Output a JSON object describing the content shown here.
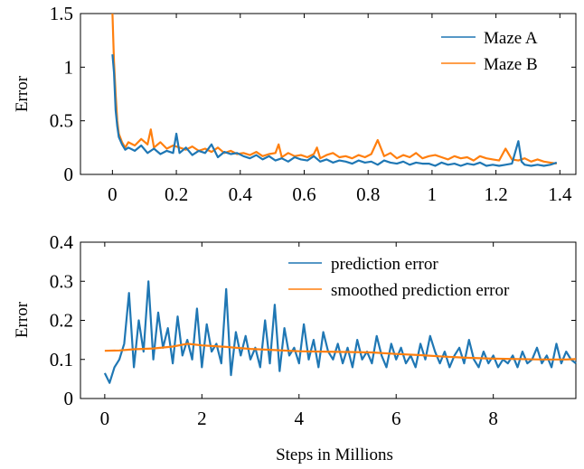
{
  "chart_data": [
    {
      "type": "line",
      "title": "",
      "xlabel": "",
      "ylabel": "Error",
      "xlim": [
        -0.1,
        1.45
      ],
      "ylim": [
        0,
        1.5
      ],
      "xticks": [
        0,
        0.2,
        0.4,
        0.6,
        0.8,
        1,
        1.2,
        1.4
      ],
      "xtick_labels": [
        "0",
        "0.2",
        "0.4",
        "0.6",
        "0.8",
        "1",
        "1.2",
        "1.4"
      ],
      "yticks": [
        0,
        0.5,
        1,
        1.5
      ],
      "ytick_labels": [
        "0",
        "0.5",
        "1",
        "1.5"
      ],
      "grid": false,
      "legend": "top-right",
      "series": [
        {
          "name": "Maze A",
          "color": "#1f77b4",
          "x": [
            0,
            0.005,
            0.01,
            0.015,
            0.02,
            0.03,
            0.04,
            0.05,
            0.07,
            0.09,
            0.11,
            0.13,
            0.15,
            0.17,
            0.19,
            0.2,
            0.21,
            0.23,
            0.25,
            0.27,
            0.29,
            0.31,
            0.33,
            0.35,
            0.37,
            0.39,
            0.41,
            0.43,
            0.45,
            0.47,
            0.49,
            0.51,
            0.53,
            0.55,
            0.57,
            0.59,
            0.61,
            0.63,
            0.65,
            0.67,
            0.69,
            0.71,
            0.73,
            0.75,
            0.77,
            0.79,
            0.81,
            0.83,
            0.85,
            0.87,
            0.89,
            0.91,
            0.93,
            0.95,
            0.97,
            0.99,
            1.01,
            1.03,
            1.05,
            1.07,
            1.09,
            1.11,
            1.13,
            1.15,
            1.17,
            1.19,
            1.21,
            1.23,
            1.25,
            1.27,
            1.28,
            1.29,
            1.31,
            1.33,
            1.35,
            1.37,
            1.39
          ],
          "y": [
            1.12,
            0.95,
            0.6,
            0.45,
            0.35,
            0.28,
            0.23,
            0.25,
            0.22,
            0.27,
            0.2,
            0.24,
            0.19,
            0.22,
            0.2,
            0.38,
            0.2,
            0.25,
            0.18,
            0.22,
            0.2,
            0.28,
            0.16,
            0.21,
            0.19,
            0.2,
            0.17,
            0.15,
            0.18,
            0.14,
            0.17,
            0.13,
            0.15,
            0.12,
            0.16,
            0.14,
            0.13,
            0.17,
            0.12,
            0.14,
            0.11,
            0.13,
            0.12,
            0.1,
            0.13,
            0.11,
            0.12,
            0.09,
            0.13,
            0.11,
            0.1,
            0.12,
            0.09,
            0.11,
            0.1,
            0.1,
            0.08,
            0.11,
            0.09,
            0.1,
            0.08,
            0.1,
            0.09,
            0.11,
            0.08,
            0.09,
            0.08,
            0.09,
            0.1,
            0.31,
            0.12,
            0.09,
            0.08,
            0.09,
            0.08,
            0.09,
            0.11
          ]
        },
        {
          "name": "Maze B",
          "color": "#ff7f0e",
          "x": [
            0,
            0.005,
            0.01,
            0.015,
            0.02,
            0.03,
            0.04,
            0.05,
            0.07,
            0.09,
            0.11,
            0.12,
            0.13,
            0.15,
            0.17,
            0.19,
            0.21,
            0.23,
            0.25,
            0.27,
            0.29,
            0.31,
            0.33,
            0.35,
            0.37,
            0.39,
            0.41,
            0.43,
            0.45,
            0.47,
            0.49,
            0.51,
            0.52,
            0.53,
            0.55,
            0.57,
            0.59,
            0.61,
            0.63,
            0.64,
            0.65,
            0.67,
            0.69,
            0.71,
            0.73,
            0.75,
            0.77,
            0.79,
            0.81,
            0.83,
            0.85,
            0.87,
            0.89,
            0.91,
            0.93,
            0.95,
            0.97,
            0.99,
            1.01,
            1.03,
            1.05,
            1.07,
            1.09,
            1.11,
            1.13,
            1.15,
            1.17,
            1.19,
            1.21,
            1.23,
            1.25,
            1.27,
            1.29,
            1.31,
            1.33,
            1.35,
            1.37,
            1.39
          ],
          "y": [
            1.5,
            1.05,
            0.75,
            0.5,
            0.38,
            0.3,
            0.25,
            0.3,
            0.27,
            0.33,
            0.28,
            0.42,
            0.25,
            0.3,
            0.24,
            0.27,
            0.25,
            0.23,
            0.26,
            0.22,
            0.24,
            0.21,
            0.25,
            0.2,
            0.22,
            0.19,
            0.2,
            0.18,
            0.21,
            0.17,
            0.19,
            0.2,
            0.28,
            0.16,
            0.2,
            0.17,
            0.18,
            0.16,
            0.19,
            0.25,
            0.15,
            0.18,
            0.2,
            0.16,
            0.17,
            0.15,
            0.18,
            0.16,
            0.19,
            0.32,
            0.17,
            0.2,
            0.15,
            0.18,
            0.16,
            0.2,
            0.15,
            0.17,
            0.18,
            0.16,
            0.14,
            0.17,
            0.15,
            0.16,
            0.13,
            0.17,
            0.15,
            0.14,
            0.13,
            0.24,
            0.14,
            0.13,
            0.15,
            0.12,
            0.14,
            0.12,
            0.11,
            0.1
          ]
        }
      ]
    },
    {
      "type": "line",
      "title": "",
      "xlabel": "Steps in Millions",
      "ylabel": "Error",
      "xlim": [
        -0.5,
        9.7
      ],
      "ylim": [
        0,
        0.4
      ],
      "xticks": [
        0,
        2,
        4,
        6,
        8
      ],
      "xtick_labels": [
        "0",
        "2",
        "4",
        "6",
        "8"
      ],
      "yticks": [
        0,
        0.1,
        0.2,
        0.3,
        0.4
      ],
      "ytick_labels": [
        "0",
        "0.1",
        "0.2",
        "0.3",
        "0.4"
      ],
      "grid": false,
      "legend": "top-right",
      "series": [
        {
          "name": "prediction error",
          "color": "#1f77b4",
          "x": [
            0,
            0.1,
            0.2,
            0.3,
            0.4,
            0.5,
            0.6,
            0.7,
            0.8,
            0.9,
            1.0,
            1.1,
            1.2,
            1.3,
            1.4,
            1.5,
            1.6,
            1.7,
            1.8,
            1.9,
            2.0,
            2.1,
            2.2,
            2.3,
            2.4,
            2.5,
            2.6,
            2.7,
            2.8,
            2.9,
            3.0,
            3.1,
            3.2,
            3.3,
            3.4,
            3.5,
            3.6,
            3.7,
            3.8,
            3.9,
            4.0,
            4.1,
            4.2,
            4.3,
            4.4,
            4.5,
            4.6,
            4.7,
            4.8,
            4.9,
            5.0,
            5.1,
            5.2,
            5.3,
            5.4,
            5.5,
            5.6,
            5.7,
            5.8,
            5.9,
            6.0,
            6.1,
            6.2,
            6.3,
            6.4,
            6.5,
            6.6,
            6.7,
            6.8,
            6.9,
            7.0,
            7.1,
            7.2,
            7.3,
            7.4,
            7.5,
            7.6,
            7.7,
            7.8,
            7.9,
            8.0,
            8.1,
            8.2,
            8.3,
            8.4,
            8.5,
            8.6,
            8.7,
            8.8,
            8.9,
            9.0,
            9.1,
            9.2,
            9.3,
            9.4,
            9.5,
            9.6,
            9.7
          ],
          "y": [
            0.065,
            0.04,
            0.08,
            0.1,
            0.14,
            0.27,
            0.08,
            0.2,
            0.12,
            0.3,
            0.1,
            0.22,
            0.13,
            0.18,
            0.09,
            0.21,
            0.11,
            0.15,
            0.1,
            0.23,
            0.08,
            0.19,
            0.12,
            0.14,
            0.09,
            0.28,
            0.06,
            0.17,
            0.11,
            0.16,
            0.1,
            0.13,
            0.08,
            0.2,
            0.09,
            0.24,
            0.07,
            0.18,
            0.11,
            0.13,
            0.09,
            0.19,
            0.1,
            0.15,
            0.08,
            0.17,
            0.12,
            0.1,
            0.14,
            0.09,
            0.13,
            0.08,
            0.15,
            0.1,
            0.12,
            0.09,
            0.16,
            0.11,
            0.08,
            0.14,
            0.1,
            0.13,
            0.09,
            0.11,
            0.08,
            0.14,
            0.1,
            0.16,
            0.12,
            0.09,
            0.12,
            0.08,
            0.11,
            0.13,
            0.09,
            0.15,
            0.1,
            0.08,
            0.12,
            0.09,
            0.11,
            0.08,
            0.1,
            0.09,
            0.11,
            0.08,
            0.12,
            0.09,
            0.1,
            0.13,
            0.09,
            0.11,
            0.08,
            0.14,
            0.09,
            0.12,
            0.1,
            0.09
          ]
        },
        {
          "name": "smoothed prediction error",
          "color": "#ff7f0e",
          "x": [
            0,
            0.3,
            0.6,
            1.0,
            1.4,
            1.7,
            2.0,
            2.5,
            3.0,
            3.5,
            4.0,
            4.5,
            5.0,
            5.5,
            6.0,
            6.5,
            7.0,
            7.5,
            8.0,
            8.5,
            9.0,
            9.5,
            9.7
          ],
          "y": [
            0.122,
            0.123,
            0.126,
            0.128,
            0.133,
            0.14,
            0.136,
            0.132,
            0.127,
            0.124,
            0.121,
            0.12,
            0.119,
            0.118,
            0.114,
            0.111,
            0.107,
            0.104,
            0.102,
            0.101,
            0.1,
            0.1,
            0.101
          ]
        }
      ]
    }
  ]
}
